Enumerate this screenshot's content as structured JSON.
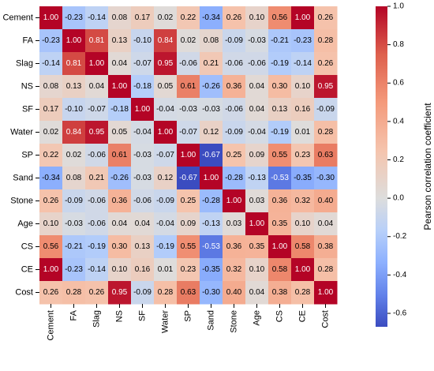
{
  "chart_data": {
    "type": "heatmap",
    "labels": [
      "Cement",
      "FA",
      "Slag",
      "NS",
      "SF",
      "Water",
      "SP",
      "Sand",
      "Stone",
      "Age",
      "CS",
      "CE",
      "Cost"
    ],
    "matrix": [
      [
        1.0,
        -0.23,
        -0.14,
        0.08,
        0.17,
        0.02,
        0.22,
        -0.34,
        0.26,
        0.1,
        0.56,
        1.0,
        0.26
      ],
      [
        -0.23,
        1.0,
        0.81,
        0.13,
        -0.1,
        0.84,
        0.02,
        0.08,
        -0.09,
        -0.03,
        -0.21,
        -0.23,
        0.28
      ],
      [
        -0.14,
        0.81,
        1.0,
        0.04,
        -0.07,
        0.95,
        -0.06,
        0.21,
        -0.06,
        -0.06,
        -0.19,
        -0.14,
        0.26
      ],
      [
        0.08,
        0.13,
        0.04,
        1.0,
        -0.18,
        0.05,
        0.61,
        -0.26,
        0.36,
        0.04,
        0.3,
        0.1,
        0.95
      ],
      [
        0.17,
        -0.1,
        -0.07,
        -0.18,
        1.0,
        -0.04,
        -0.03,
        -0.03,
        -0.06,
        0.04,
        0.13,
        0.16,
        -0.09
      ],
      [
        0.02,
        0.84,
        0.95,
        0.05,
        -0.04,
        1.0,
        -0.07,
        0.12,
        -0.09,
        -0.04,
        -0.19,
        0.01,
        0.28
      ],
      [
        0.22,
        0.02,
        -0.06,
        0.61,
        -0.03,
        -0.07,
        1.0,
        -0.67,
        0.25,
        0.09,
        0.55,
        0.23,
        0.63
      ],
      [
        -0.34,
        0.08,
        0.21,
        -0.26,
        -0.03,
        0.12,
        -0.67,
        1.0,
        -0.28,
        -0.13,
        -0.53,
        -0.35,
        -0.3
      ],
      [
        0.26,
        -0.09,
        -0.06,
        0.36,
        -0.06,
        -0.09,
        0.25,
        -0.28,
        1.0,
        0.03,
        0.36,
        0.32,
        0.4
      ],
      [
        0.1,
        -0.03,
        -0.06,
        0.04,
        0.04,
        -0.04,
        0.09,
        -0.13,
        0.03,
        1.0,
        0.35,
        0.1,
        0.04
      ],
      [
        0.56,
        -0.21,
        -0.19,
        0.3,
        0.13,
        -0.19,
        0.55,
        -0.53,
        0.36,
        0.35,
        1.0,
        0.58,
        0.38
      ],
      [
        1.0,
        -0.23,
        -0.14,
        0.1,
        0.16,
        0.01,
        0.23,
        -0.35,
        0.32,
        0.1,
        0.58,
        1.0,
        0.28
      ],
      [
        0.26,
        0.28,
        0.26,
        0.95,
        -0.09,
        0.28,
        0.63,
        -0.3,
        0.4,
        0.04,
        0.38,
        0.28,
        1.0
      ]
    ],
    "colorbar": {
      "label": "Pearson correlation coefficient",
      "range": [
        -0.67,
        1.0
      ],
      "ticks": [
        -0.6,
        -0.4,
        -0.2,
        0.0,
        0.2,
        0.4,
        0.6,
        0.8,
        1.0
      ],
      "tick_labels": [
        "-0.6",
        "-0.4",
        "-0.2",
        "0.0",
        "0.2",
        "0.4",
        "0.6",
        "0.8",
        "1.0"
      ],
      "colormap": "coolwarm",
      "colors": {
        "low": "#3b4cc0",
        "mid": "#dddddd",
        "high": "#b40426"
      }
    },
    "value_format": "2 decimals",
    "grid": false
  }
}
